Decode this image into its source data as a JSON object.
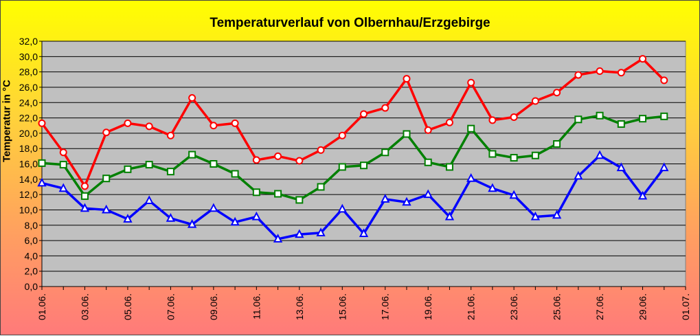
{
  "chart_data": {
    "type": "line",
    "title": "Temperaturverlauf von Olbernhau/Erzgebirge",
    "ylabel": "Temperatur in °C",
    "xlabel": "",
    "ylim": [
      0,
      32
    ],
    "y_step": 2,
    "grid": true,
    "y_tick_labels": [
      "0,0",
      "2,0",
      "4,0",
      "6,0",
      "8,0",
      "10,0",
      "12,0",
      "14,0",
      "16,0",
      "18,0",
      "20,0",
      "22,0",
      "24,0",
      "26,0",
      "28,0",
      "30,0",
      "32,0"
    ],
    "x_tick_labels": [
      "01.06.",
      "03.06.",
      "05.06.",
      "07.06.",
      "09.06.",
      "11.06.",
      "13.06.",
      "15.06.",
      "17.06.",
      "19.06.",
      "21.06.",
      "23.06.",
      "25.06.",
      "27.06.",
      "29.06.",
      "01.07."
    ],
    "x": [
      "01.06.",
      "02.06.",
      "03.06.",
      "04.06.",
      "05.06.",
      "06.06.",
      "07.06.",
      "08.06.",
      "09.06.",
      "10.06.",
      "11.06.",
      "12.06.",
      "13.06.",
      "14.06.",
      "15.06.",
      "16.06.",
      "17.06.",
      "18.06.",
      "19.06.",
      "20.06.",
      "21.06.",
      "22.06.",
      "23.06.",
      "24.06.",
      "25.06.",
      "26.06.",
      "27.06.",
      "28.06.",
      "29.06.",
      "30.06."
    ],
    "series": [
      {
        "color": "#ff0000",
        "marker": "circle",
        "values": [
          21.3,
          17.5,
          13.1,
          20.1,
          21.3,
          20.9,
          19.7,
          24.6,
          21.0,
          21.3,
          16.5,
          17.0,
          16.4,
          17.8,
          19.7,
          22.5,
          23.3,
          27.1,
          20.4,
          21.4,
          26.6,
          21.7,
          22.1,
          24.2,
          25.3,
          27.6,
          28.1,
          27.9,
          29.7,
          26.9
        ]
      },
      {
        "color": "#008000",
        "marker": "square",
        "values": [
          16.1,
          15.9,
          11.8,
          14.1,
          15.3,
          15.9,
          15.0,
          17.2,
          16.0,
          14.7,
          12.3,
          12.1,
          11.3,
          13.0,
          15.6,
          15.8,
          17.5,
          19.9,
          16.2,
          15.6,
          20.6,
          17.3,
          16.8,
          17.1,
          18.6,
          21.8,
          22.3,
          21.2,
          21.9,
          22.2
        ]
      },
      {
        "color": "#0000ff",
        "marker": "triangle",
        "values": [
          13.5,
          12.8,
          10.2,
          10.0,
          8.8,
          11.2,
          8.9,
          8.1,
          10.2,
          8.4,
          9.1,
          6.2,
          6.8,
          7.0,
          10.1,
          6.9,
          11.4,
          11.0,
          12.0,
          9.1,
          14.1,
          12.8,
          11.9,
          9.1,
          9.3,
          14.4,
          17.1,
          15.5,
          11.8,
          15.5
        ]
      }
    ]
  }
}
